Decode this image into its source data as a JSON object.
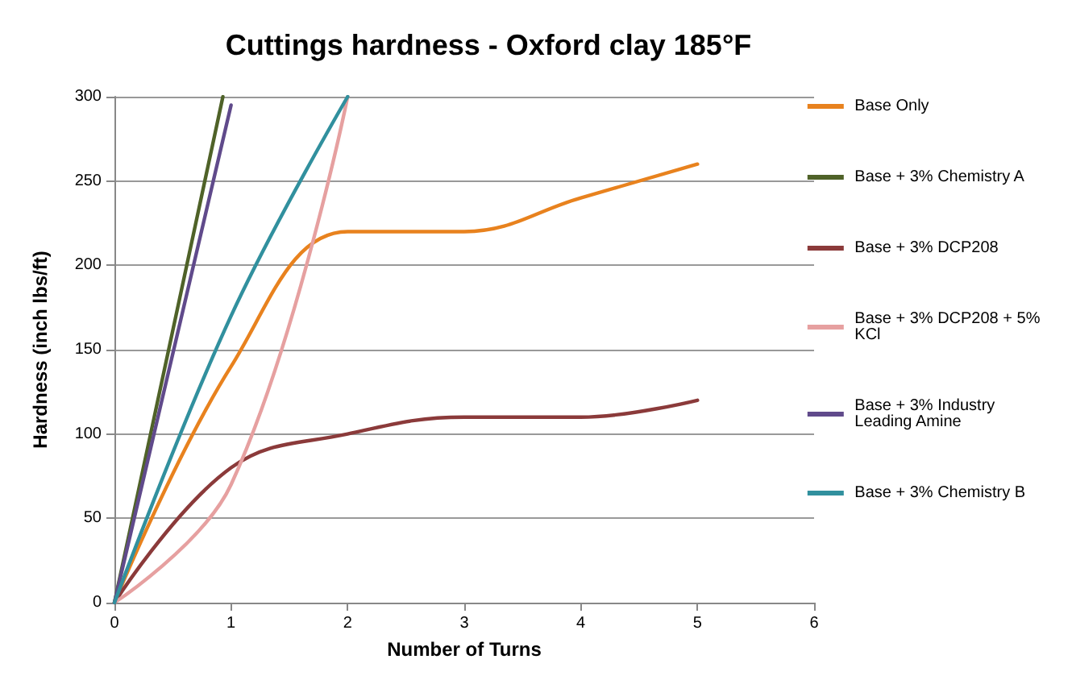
{
  "chart_data": {
    "type": "line",
    "title": "Cuttings hardness - Oxford clay 185°F",
    "xlabel": "Number of Turns",
    "ylabel": "Hardness (inch lbs/ft)",
    "xlim": [
      0,
      6
    ],
    "xticks": [
      0,
      1,
      2,
      3,
      4,
      5,
      6
    ],
    "ylim": [
      0,
      300
    ],
    "yticks": [
      0,
      50,
      100,
      150,
      200,
      250,
      300
    ],
    "grid": "y",
    "legend": "right",
    "marker": "none",
    "line_style": "solid",
    "series": [
      {
        "name": "Base Only",
        "color": "#e8821e",
        "x": [
          0,
          1,
          2,
          3,
          4,
          5
        ],
        "values": [
          0,
          140,
          220,
          220,
          240,
          260
        ]
      },
      {
        "name": "Base + 3% Chemistry A",
        "color": "#4f6228",
        "x": [
          0,
          0.93
        ],
        "values": [
          0,
          300
        ]
      },
      {
        "name": "Base + 3% DCP208",
        "color": "#8b3a3a",
        "x": [
          0,
          1,
          2,
          3,
          4,
          5
        ],
        "values": [
          0,
          80,
          100,
          110,
          110,
          120
        ]
      },
      {
        "name": "Base + 3% DCP208 + 5% KCl",
        "color": "#e6a0a0",
        "x": [
          0,
          1,
          2
        ],
        "values": [
          0,
          70,
          300
        ]
      },
      {
        "name": "Base + 3% Industry Leading Amine",
        "color": "#604a8b",
        "x": [
          0,
          1
        ],
        "values": [
          0,
          295
        ]
      },
      {
        "name": "Base + 3% Chemistry B",
        "color": "#31909e",
        "x": [
          0,
          1,
          2
        ],
        "values": [
          0,
          170,
          300
        ]
      }
    ]
  }
}
